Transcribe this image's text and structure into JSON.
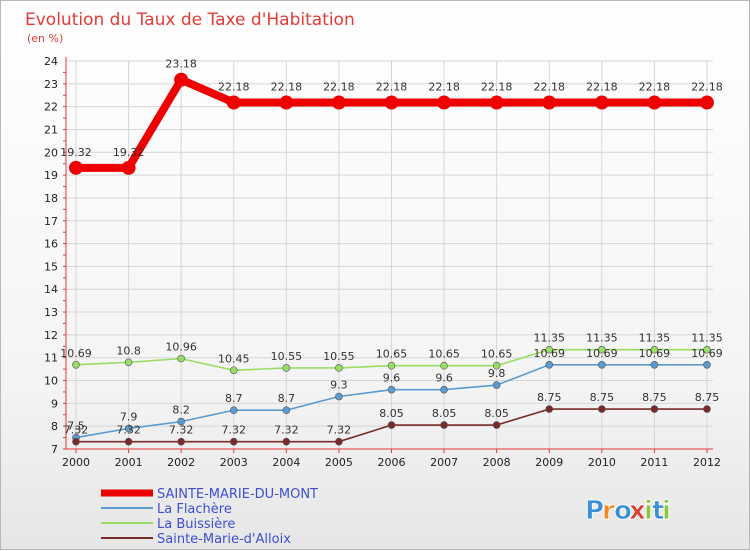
{
  "colors": {
    "title": "#e23a35",
    "axis": "#e23a35",
    "grid": "#d6d6d6",
    "legend_text": "#3d4fd8"
  },
  "chart_data": {
    "type": "line",
    "title": "Evolution du Taux de Taxe d'Habitation",
    "subtitle": "(en %)",
    "x": [
      "2000",
      "2001",
      "2002",
      "2003",
      "2004",
      "2005",
      "2006",
      "2007",
      "2008",
      "2009",
      "2010",
      "2011",
      "2012"
    ],
    "ylim": [
      7,
      24
    ],
    "yticks": [
      "7",
      "8",
      "9",
      "10",
      "11",
      "12",
      "13",
      "14",
      "15",
      "16",
      "17",
      "18",
      "19",
      "20",
      "21",
      "22",
      "23",
      "24"
    ],
    "grid": true,
    "legend_position": "bottom-left",
    "series": [
      {
        "name": "SAINTE-MARIE-DU-MONT",
        "color": "#ee0000",
        "values": [
          19.32,
          19.32,
          23.18,
          22.18,
          22.18,
          22.18,
          22.18,
          22.18,
          22.18,
          22.18,
          22.18,
          22.18,
          22.18
        ],
        "labels": [
          "19.32",
          "19.32",
          "23.18",
          "22.18",
          "22.18",
          "22.18",
          "22.18",
          "22.18",
          "22.18",
          "22.18",
          "22.18",
          "22.18",
          "22.18"
        ]
      },
      {
        "name": "La Flachère",
        "color": "#5b9bd0",
        "values": [
          7.5,
          7.9,
          8.2,
          8.7,
          8.7,
          9.3,
          9.6,
          9.6,
          9.8,
          10.69,
          10.69,
          10.69,
          10.69
        ],
        "labels": [
          "7.5",
          "7.9",
          "8.2",
          "8.7",
          "8.7",
          "9.3",
          "9.6",
          "9.6",
          "9.8",
          "10.69",
          "10.69",
          "10.69",
          "10.69"
        ]
      },
      {
        "name": "La Buissière",
        "color": "#99dd66",
        "values": [
          10.69,
          10.8,
          10.96,
          10.45,
          10.55,
          10.55,
          10.65,
          10.65,
          10.65,
          11.35,
          11.35,
          11.35,
          11.35
        ],
        "labels": [
          "10.69",
          "10.8",
          "10.96",
          "10.45",
          "10.55",
          "10.55",
          "10.65",
          "10.65",
          "10.65",
          "11.35",
          "11.35",
          "11.35",
          "11.35"
        ]
      },
      {
        "name": "Sainte-Marie-d'Alloix",
        "color": "#7a2a2a",
        "values": [
          7.32,
          7.32,
          7.32,
          7.32,
          7.32,
          7.32,
          8.05,
          8.05,
          8.05,
          8.75,
          8.75,
          8.75,
          8.75
        ],
        "labels": [
          "7.32",
          "7.32",
          "7.32",
          "7.32",
          "7.32",
          "7.32",
          "8.05",
          "8.05",
          "8.05",
          "8.75",
          "8.75",
          "8.75",
          "8.75"
        ]
      }
    ]
  },
  "brand": {
    "letters": [
      "P",
      "r",
      "o",
      "x",
      "i",
      "t",
      "i"
    ],
    "colors": [
      "#3a8fd8",
      "#f08a1c",
      "#3a8fd8",
      "#e23a35",
      "#8cc63f",
      "#3a8fd8",
      "#8cc63f"
    ]
  }
}
